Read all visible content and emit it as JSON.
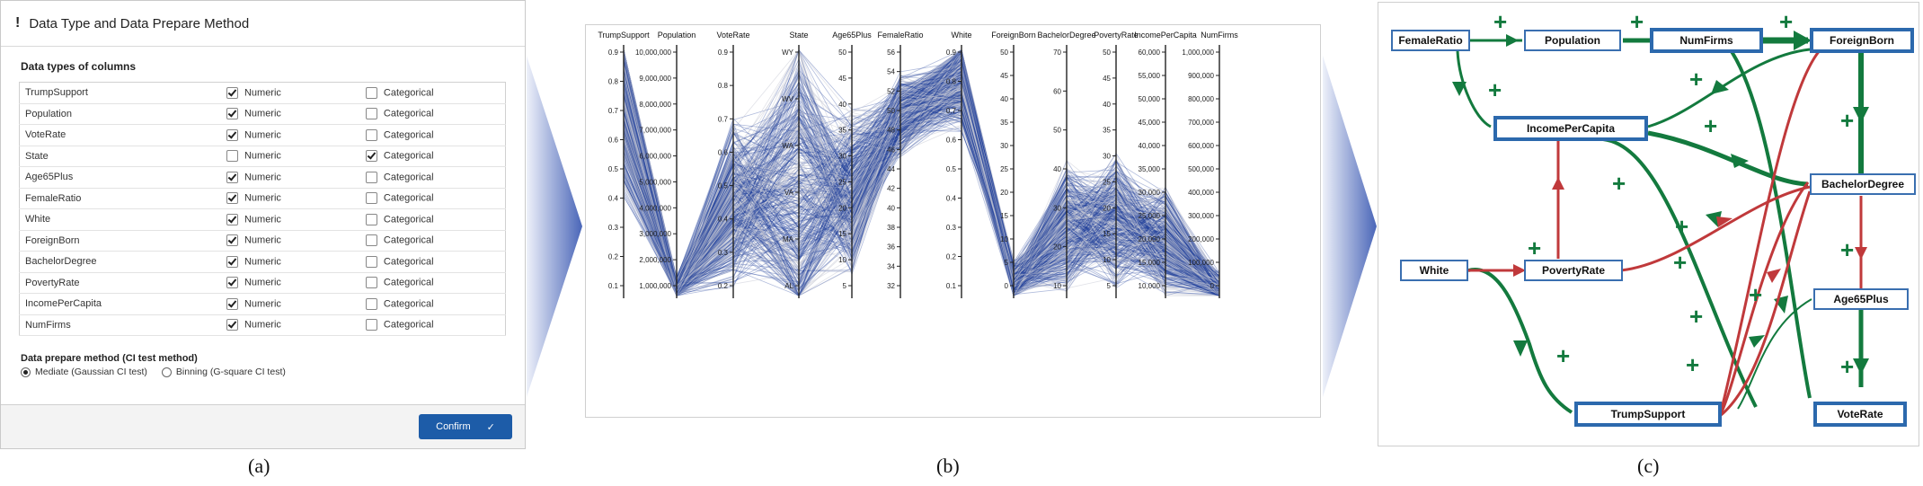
{
  "panel_a": {
    "title": "Data Type and Data Prepare Method",
    "section_label": "Data types of columns",
    "numeric_label": "Numeric",
    "categorical_label": "Categorical",
    "rows": [
      {
        "name": "TrumpSupport",
        "type": "Numeric"
      },
      {
        "name": "Population",
        "type": "Numeric"
      },
      {
        "name": "VoteRate",
        "type": "Numeric"
      },
      {
        "name": "State",
        "type": "Categorical"
      },
      {
        "name": "Age65Plus",
        "type": "Numeric"
      },
      {
        "name": "FemaleRatio",
        "type": "Numeric"
      },
      {
        "name": "White",
        "type": "Numeric"
      },
      {
        "name": "ForeignBorn",
        "type": "Numeric"
      },
      {
        "name": "BachelorDegree",
        "type": "Numeric"
      },
      {
        "name": "PovertyRate",
        "type": "Numeric"
      },
      {
        "name": "IncomePerCapita",
        "type": "Numeric"
      },
      {
        "name": "NumFirms",
        "type": "Numeric"
      }
    ],
    "prepare_title": "Data prepare method (CI test method)",
    "prepare_options": [
      "Mediate (Gaussian CI test)",
      "Binning (G-square CI test)"
    ],
    "prepare_selected": 0,
    "confirm_label": "Confirm"
  },
  "panel_b": {
    "axes": [
      {
        "name": "TrumpSupport",
        "ticks": [
          "0.9",
          "0.8",
          "0.7",
          "0.6",
          "0.5",
          "0.4",
          "0.3",
          "0.2",
          "0.1"
        ]
      },
      {
        "name": "Population",
        "ticks": [
          "10,000,000",
          "9,000,000",
          "8,000,000",
          "7,000,000",
          "6,000,000",
          "5,000,000",
          "4,000,000",
          "3,000,000",
          "2,000,000",
          "1,000,000"
        ]
      },
      {
        "name": "VoteRate",
        "ticks": [
          "0.9",
          "0.8",
          "0.7",
          "0.6",
          "0.5",
          "0.4",
          "0.3",
          "0.2"
        ]
      },
      {
        "name": "State",
        "ticks": [
          "WY",
          "WV",
          "WA",
          "VA",
          "MA",
          "AL"
        ]
      },
      {
        "name": "Age65Plus",
        "ticks": [
          "50",
          "45",
          "40",
          "35",
          "30",
          "25",
          "20",
          "15",
          "10",
          "5"
        ]
      },
      {
        "name": "FemaleRatio",
        "ticks": [
          "56",
          "54",
          "52",
          "50",
          "48",
          "46",
          "44",
          "42",
          "40",
          "38",
          "36",
          "34",
          "32"
        ]
      },
      {
        "name": "White",
        "ticks": [
          "0.9",
          "0.8",
          "0.7",
          "0.6",
          "0.5",
          "0.4",
          "0.3",
          "0.2",
          "0.1"
        ]
      },
      {
        "name": "ForeignBorn",
        "ticks": [
          "50",
          "45",
          "40",
          "35",
          "30",
          "25",
          "20",
          "15",
          "10",
          "5",
          "0"
        ]
      },
      {
        "name": "BachelorDegree",
        "ticks": [
          "70",
          "60",
          "50",
          "40",
          "30",
          "20",
          "10"
        ]
      },
      {
        "name": "PovertyRate",
        "ticks": [
          "50",
          "45",
          "40",
          "35",
          "30",
          "25",
          "20",
          "15",
          "10",
          "5"
        ]
      },
      {
        "name": "IncomePerCapita",
        "ticks": [
          "60,000",
          "55,000",
          "50,000",
          "45,000",
          "40,000",
          "35,000",
          "30,000",
          "25,000",
          "20,000",
          "15,000",
          "10,000"
        ]
      },
      {
        "name": "NumFirms",
        "ticks": [
          "1,000,000",
          "900,000",
          "800,000",
          "700,000",
          "600,000",
          "500,000",
          "400,000",
          "300,000",
          "200,000",
          "100,000",
          "0"
        ]
      }
    ]
  },
  "panel_c": {
    "nodes": {
      "femaleratio": "FemaleRatio",
      "population": "Population",
      "numfirms": "NumFirms",
      "foreignborn": "ForeignBorn",
      "incomepercapita": "IncomePerCapita",
      "bachelordegree": "BachelorDegree",
      "white": "White",
      "povertyrate": "PovertyRate",
      "age65plus": "Age65Plus",
      "trumpsupport": "TrumpSupport",
      "voterate": "VoteRate"
    },
    "sign_label": "+",
    "colors": {
      "positive": "#137a3e",
      "negative": "#c0393b",
      "node_border": "#3a6fb0"
    }
  },
  "captions": {
    "a": "(a)",
    "b": "(b)",
    "c": "(c)"
  },
  "colors": {
    "accent": "#1d5ca8",
    "polyline": "#1f3f9a"
  }
}
